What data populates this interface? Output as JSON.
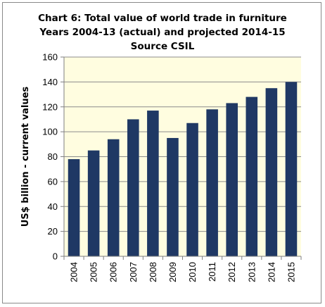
{
  "chart_data": {
    "type": "bar",
    "title_lines": [
      "Chart 6: Total value of world trade in furniture",
      "Years 2004-13 (actual) and projected 2014-15",
      "Source CSIL"
    ],
    "xlabel": "",
    "ylabel": "US$ billion - current values",
    "categories": [
      "2004",
      "2005",
      "2006",
      "2007",
      "2008",
      "2009",
      "2010",
      "2011",
      "2012",
      "2013",
      "2014",
      "2015"
    ],
    "values": [
      78,
      85,
      94,
      110,
      117,
      95,
      107,
      118,
      123,
      128,
      135,
      140
    ],
    "ylim": [
      0,
      160
    ],
    "yticks": [
      0,
      20,
      40,
      60,
      80,
      100,
      120,
      140,
      160
    ],
    "grid": true,
    "legend": "none",
    "colors": {
      "bar": "#1f3864",
      "plot_background": "#fffde0",
      "gridline": "#8c8c8c",
      "frame_border": "#8a8a8a"
    }
  }
}
